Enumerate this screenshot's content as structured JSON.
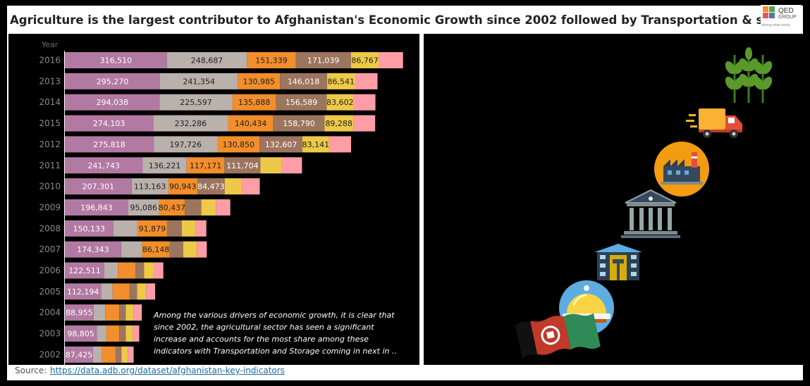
{
  "title": "Agriculture is the largest contributor to Afghanistan's Economic Growth since 2002 followed by Transportation & stora",
  "logo": {
    "name": "QED",
    "sub": "GROUP",
    "tagline": "driving what works"
  },
  "source": {
    "label": "Source:",
    "url": "https://data.adb.org/dataset/afghanistan-key-indicators"
  },
  "annotation": "Among the various drivers of economic growth, it is clear that since 2002, the agricultural sector has seen a significant increase and accounts for the most share among these indicators with Transportation and Storage coming in next in ..",
  "chart_data": {
    "type": "bar",
    "orientation": "horizontal",
    "stacked": true,
    "title": "",
    "xlabel": "",
    "ylabel": "Year",
    "categories": [
      "2016",
      "2013",
      "2014",
      "2015",
      "2012",
      "2011",
      "2010",
      "2009",
      "2008",
      "2007",
      "2006",
      "2005",
      "2004",
      "2003",
      "2002"
    ],
    "series": [
      {
        "color": "#b279a2",
        "label_color": "#ffffff",
        "values": [
          316510,
          295270,
          294038,
          274103,
          275818,
          241743,
          207301,
          196843,
          150133,
          174343,
          122511,
          112194,
          88955,
          98805,
          87425
        ],
        "labels": [
          "316,510",
          "295,270",
          "294,038",
          "274,103",
          "275,818",
          "241,743",
          "207,301",
          "196,843",
          "150,133",
          "174,343",
          "122,511",
          "112,194",
          "88,955",
          "98,805",
          "87,425"
        ]
      },
      {
        "color": "#bab0ac",
        "label_color": "#222222",
        "values": [
          248687,
          241354,
          225597,
          232286,
          197726,
          136221,
          113163,
          95086,
          75000,
          65000,
          42000,
          36000,
          36000,
          30000,
          28000
        ],
        "labels": [
          "248,687",
          "241,354",
          "225,597",
          "232,286",
          "197,726",
          "136,221",
          "113,163",
          "95,086",
          "",
          "",
          "",
          "",
          "",
          "",
          ""
        ]
      },
      {
        "color": "#f28e2b",
        "label_color": "#222222",
        "values": [
          151339,
          130985,
          135888,
          140434,
          130850,
          117171,
          90943,
          80437,
          91879,
          86148,
          55000,
          52000,
          44000,
          40000,
          42000
        ],
        "labels": [
          "151,339",
          "130,985",
          "135,888",
          "140,434",
          "130,850",
          "117,171",
          "90,943",
          "80,437",
          "91,879",
          "86,148",
          "",
          "",
          "",
          "",
          ""
        ]
      },
      {
        "color": "#9c755f",
        "label_color": "#ffffff",
        "values": [
          171039,
          146018,
          156589,
          158790,
          132607,
          111704,
          84473,
          51000,
          46000,
          42000,
          26000,
          24000,
          20000,
          20000,
          18000
        ],
        "labels": [
          "171,039",
          "146,018",
          "156,589",
          "158,790",
          "132,607",
          "111,704",
          "84,473",
          "",
          "",
          "",
          "",
          "",
          "",
          "",
          ""
        ]
      },
      {
        "color": "#edc948",
        "label_color": "#222222",
        "values": [
          86767,
          86541,
          83602,
          89288,
          83141,
          66000,
          53000,
          45000,
          43000,
          42000,
          30000,
          28000,
          24000,
          22000,
          20000
        ],
        "labels": [
          "86,767",
          "86,541",
          "83,602",
          "89,288",
          "83,141",
          "",
          "",
          "",
          "",
          "",
          "",
          "",
          "",
          "",
          ""
        ]
      },
      {
        "color": "#ff9da7",
        "label_color": "#222222",
        "values": [
          75000,
          70000,
          68000,
          68000,
          68000,
          63000,
          56000,
          45000,
          33000,
          31000,
          30000,
          28000,
          26000,
          20000,
          18000
        ],
        "labels": [
          "",
          "",
          "",
          "",
          "",
          "",
          "",
          "",
          "",
          "",
          "",
          "",
          "",
          "",
          ""
        ]
      }
    ]
  },
  "image_panel": {
    "icons": [
      "wheat-icon",
      "delivery-truck-icon",
      "factory-icon",
      "bank-icon",
      "building-icon",
      "service-bell-icon",
      "afghanistan-flag-icon"
    ]
  }
}
